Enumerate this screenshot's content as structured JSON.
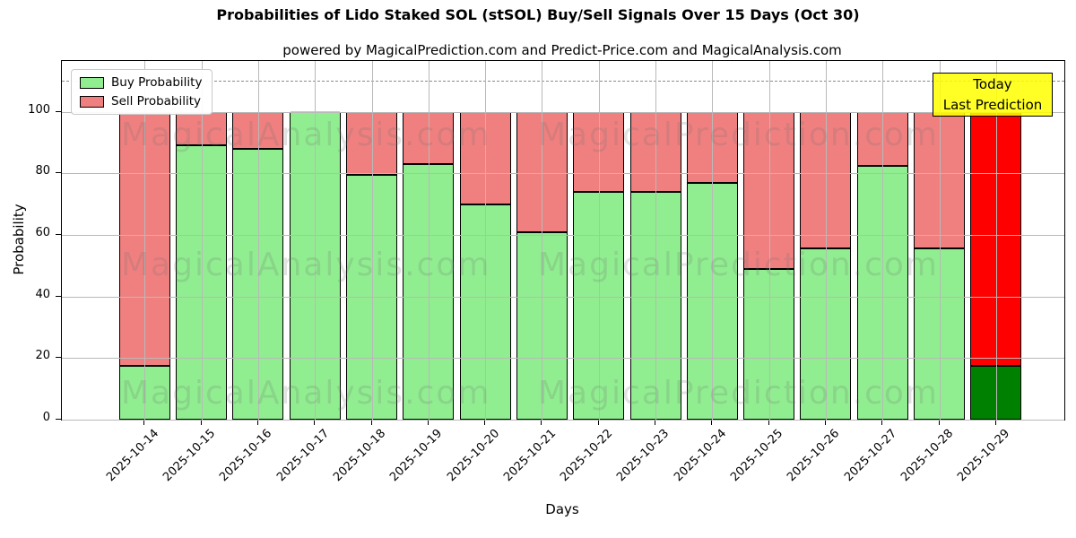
{
  "title": "Probabilities of Lido Staked SOL (stSOL) Buy/Sell Signals Over 15 Days (Oct 30)",
  "subtitle": "powered by MagicalPrediction.com and Predict-Price.com and MagicalAnalysis.com",
  "legend": {
    "items": [
      {
        "label": "Buy Probability",
        "color": "#90EE90"
      },
      {
        "label": "Sell Probability",
        "color": "#F08080"
      }
    ]
  },
  "annotation": {
    "line1": "Today",
    "line2": "Last Prediction",
    "bg_color": "#FFFF00"
  },
  "watermarks": {
    "left_text": "MagicalAnalysis.com",
    "right_text": "MagicalPrediction.com"
  },
  "axes": {
    "xlabel": "Days",
    "ylabel": "Probability",
    "yticks": [
      "0",
      "20",
      "40",
      "60",
      "80",
      "100"
    ]
  },
  "chart_data": {
    "type": "bar",
    "stacked": true,
    "title": "Probabilities of Lido Staked SOL (stSOL) Buy/Sell Signals Over 15 Days (Oct 30)",
    "xlabel": "Days",
    "ylabel": "Probability",
    "ylim": [
      0,
      116.5
    ],
    "yticks": [
      0,
      20,
      40,
      60,
      80,
      100
    ],
    "dashed_hline": 110,
    "grid": true,
    "legend_position": "upper-left",
    "categories": [
      "2025-10-14",
      "2025-10-15",
      "2025-10-16",
      "2025-10-17",
      "2025-10-18",
      "2025-10-19",
      "2025-10-20",
      "2025-10-21",
      "2025-10-22",
      "2025-10-23",
      "2025-10-24",
      "2025-10-25",
      "2025-10-26",
      "2025-10-27",
      "2025-10-28",
      "2025-10-29"
    ],
    "series": [
      {
        "name": "Buy Probability",
        "color": "#90EE90",
        "values": [
          17.5,
          89,
          88,
          100,
          79.5,
          83,
          70,
          61,
          74,
          74,
          77,
          49,
          55.5,
          82.5,
          55.5,
          17.5
        ]
      },
      {
        "name": "Sell Probability",
        "color": "#F08080",
        "values": [
          82.5,
          11,
          12,
          0,
          20.5,
          17,
          30,
          39,
          26,
          26,
          23,
          51,
          44.5,
          17.5,
          44.5,
          82.5
        ]
      }
    ],
    "highlight_last_bar": {
      "category": "2025-10-29",
      "buy_color": "#008000",
      "sell_color": "#FF0000"
    }
  }
}
